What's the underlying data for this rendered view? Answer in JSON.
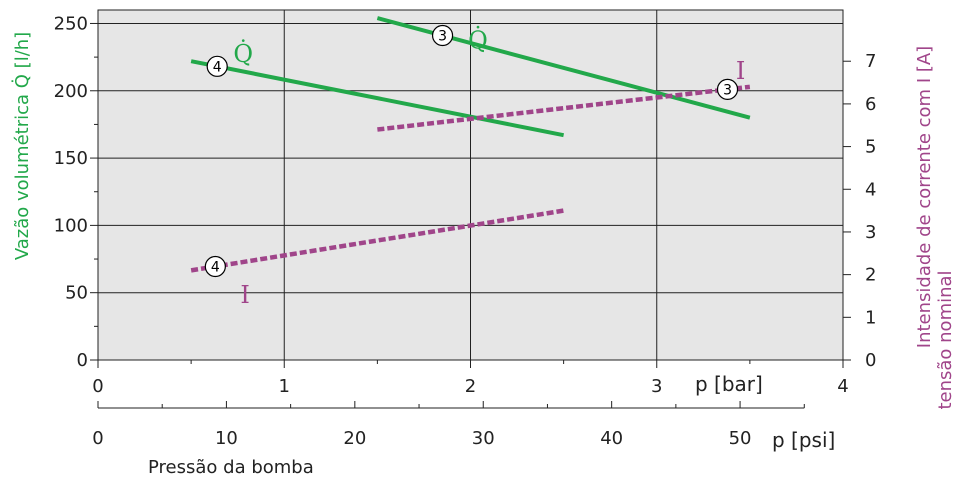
{
  "colors": {
    "flow": "#22a84a",
    "current": "#a0458a",
    "plot_bg": "#e6e6e6",
    "grid": "#222222"
  },
  "chart_data": {
    "type": "line",
    "xlabel": "Pressão da bomba",
    "x_unit_bar": "p [bar]",
    "x_unit_psi": "p [psi]",
    "ylabel_left": "Vazão volumétrica Q̇ [l/h]",
    "ylabel_right_line1": "Intensidade de corrente com I [A]",
    "ylabel_right_line2": "tensão nominal",
    "xlim_bar": [
      0,
      4
    ],
    "ylim_left": [
      0,
      260
    ],
    "ylim_right": [
      0,
      8.2
    ],
    "x_ticks_bar": [
      0,
      1,
      2,
      3,
      4
    ],
    "x_ticks_psi": [
      0,
      10,
      20,
      30,
      40,
      50
    ],
    "y_ticks_left": [
      0,
      50,
      100,
      150,
      200,
      250
    ],
    "y_ticks_right": [
      0,
      1,
      2,
      3,
      4,
      5,
      6,
      7
    ],
    "grid": true,
    "series": [
      {
        "label": "4",
        "tag": "Q̇",
        "axis": "left",
        "style": "solid",
        "x": [
          0.5,
          2.5
        ],
        "y": [
          222,
          167
        ],
        "marker_x": 0.64,
        "tag_x": 0.78,
        "tag_y": 228
      },
      {
        "label": "3",
        "tag": "Q̇",
        "axis": "left",
        "style": "solid",
        "x": [
          1.5,
          3.5
        ],
        "y": [
          254,
          180
        ],
        "marker_x": 1.85,
        "tag_x": 2.04,
        "tag_y": 238
      },
      {
        "label": "4",
        "tag": "I",
        "axis": "right",
        "style": "dashed",
        "x": [
          0.5,
          2.5
        ],
        "y": [
          2.1,
          3.5
        ],
        "marker_x": 0.63,
        "tag_x": 0.79,
        "tag_y": 1.55
      },
      {
        "label": "3",
        "tag": "I",
        "axis": "right",
        "style": "dashed",
        "x": [
          1.5,
          3.5
        ],
        "y": [
          5.4,
          6.4
        ],
        "marker_x": 3.38,
        "tag_x": 3.45,
        "tag_y": 6.8
      }
    ]
  }
}
